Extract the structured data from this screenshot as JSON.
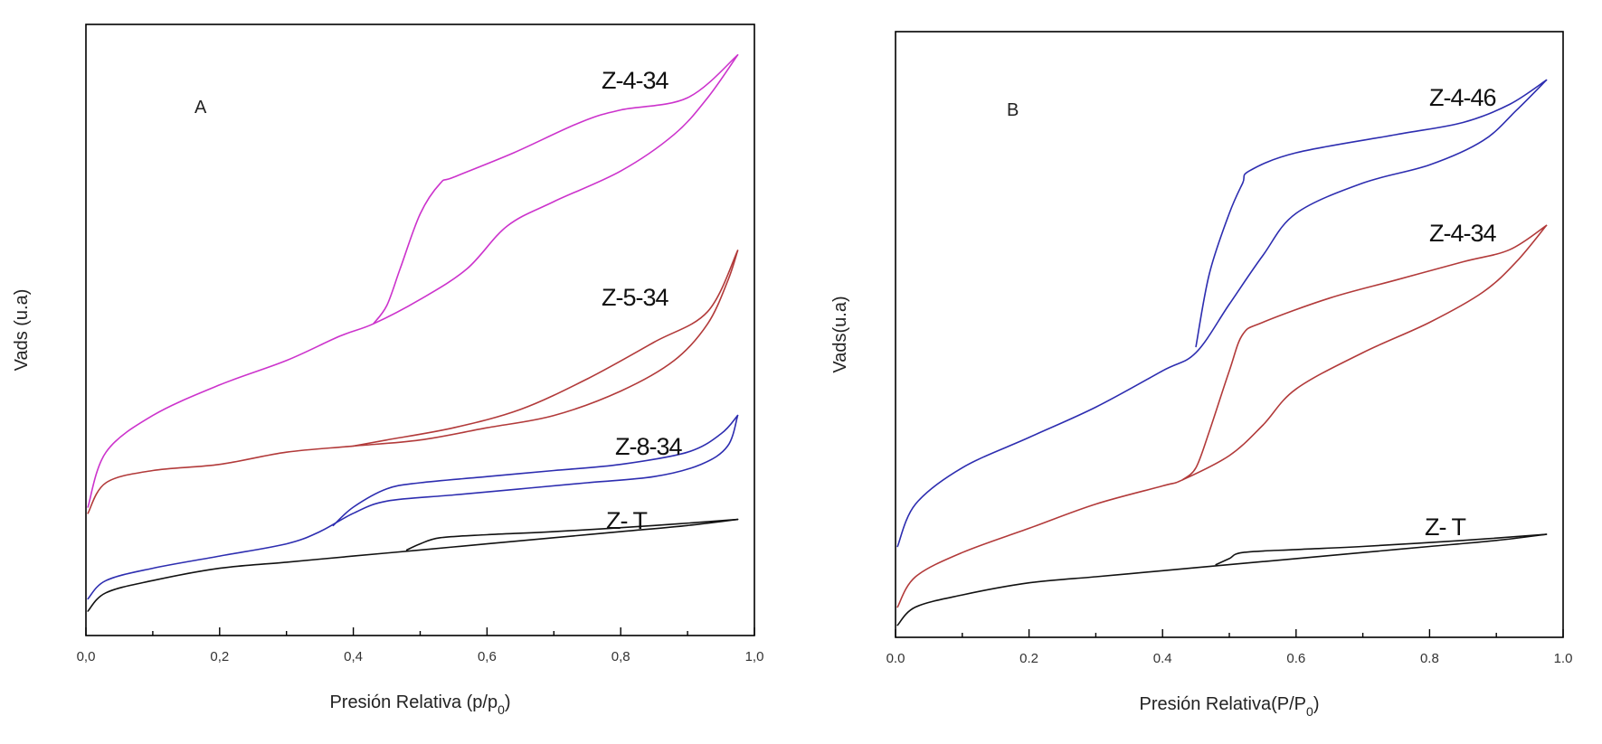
{
  "chart_data": [
    {
      "type": "line",
      "panel": "A",
      "xlabel": "Presión Relativa (p/p",
      "xlabel_sub": "0",
      "xlabel_close": ")",
      "ylabel": "Vads (u.a)",
      "xlim": [
        0.0,
        1.0
      ],
      "ylim": [
        0,
        100
      ],
      "y_ticks_labeled": false,
      "xticks": [
        0.0,
        0.2,
        0.4,
        0.6,
        0.8,
        1.0
      ],
      "xtick_labels": [
        "0,0",
        "0,2",
        "0,4",
        "0,6",
        "0,8",
        "1,0"
      ],
      "grid": false,
      "legend": "none",
      "series": [
        {
          "name": "Z-4-34",
          "color": "#cc33cc",
          "adsorption": [
            [
              0.003,
              21
            ],
            [
              0.03,
              30
            ],
            [
              0.1,
              36
            ],
            [
              0.2,
              41
            ],
            [
              0.3,
              45
            ],
            [
              0.38,
              49
            ],
            [
              0.43,
              51
            ],
            [
              0.5,
              55
            ],
            [
              0.57,
              60
            ],
            [
              0.63,
              67
            ],
            [
              0.7,
              71
            ],
            [
              0.8,
              76
            ],
            [
              0.88,
              82
            ],
            [
              0.93,
              88
            ],
            [
              0.975,
              95
            ]
          ],
          "desorption": [
            [
              0.975,
              95
            ],
            [
              0.9,
              88
            ],
            [
              0.8,
              86
            ],
            [
              0.74,
              84
            ],
            [
              0.64,
              79
            ],
            [
              0.55,
              75
            ],
            [
              0.53,
              74
            ],
            [
              0.5,
              69
            ],
            [
              0.47,
              60
            ],
            [
              0.45,
              54
            ],
            [
              0.43,
              51
            ]
          ]
        },
        {
          "name": "Z-5-34",
          "color": "#b23a3a",
          "adsorption": [
            [
              0.003,
              20
            ],
            [
              0.03,
              25
            ],
            [
              0.1,
              27
            ],
            [
              0.2,
              28
            ],
            [
              0.3,
              30
            ],
            [
              0.4,
              31
            ],
            [
              0.5,
              32
            ],
            [
              0.6,
              34
            ],
            [
              0.7,
              36
            ],
            [
              0.8,
              40
            ],
            [
              0.88,
              45
            ],
            [
              0.93,
              51
            ],
            [
              0.96,
              58
            ],
            [
              0.975,
              63
            ]
          ],
          "desorption": [
            [
              0.975,
              63
            ],
            [
              0.93,
              53
            ],
            [
              0.85,
              48
            ],
            [
              0.75,
              42
            ],
            [
              0.65,
              37
            ],
            [
              0.55,
              34
            ],
            [
              0.45,
              32
            ],
            [
              0.4,
              31
            ]
          ]
        },
        {
          "name": "Z-8-34",
          "color": "#2d2db0",
          "adsorption": [
            [
              0.003,
              6
            ],
            [
              0.03,
              9
            ],
            [
              0.1,
              11
            ],
            [
              0.2,
              13
            ],
            [
              0.3,
              15
            ],
            [
              0.35,
              17
            ],
            [
              0.4,
              20
            ],
            [
              0.45,
              22
            ],
            [
              0.55,
              23
            ],
            [
              0.65,
              24
            ],
            [
              0.75,
              25
            ],
            [
              0.85,
              26
            ],
            [
              0.92,
              28
            ],
            [
              0.96,
              31
            ],
            [
              0.975,
              36
            ]
          ],
          "desorption": [
            [
              0.975,
              36
            ],
            [
              0.95,
              33
            ],
            [
              0.9,
              30
            ],
            [
              0.8,
              28
            ],
            [
              0.7,
              27
            ],
            [
              0.6,
              26
            ],
            [
              0.5,
              25
            ],
            [
              0.45,
              24
            ],
            [
              0.4,
              21
            ],
            [
              0.37,
              18
            ]
          ]
        },
        {
          "name": "Z- T",
          "color": "#111111",
          "adsorption": [
            [
              0.003,
              4
            ],
            [
              0.03,
              7
            ],
            [
              0.1,
              9
            ],
            [
              0.2,
              11
            ],
            [
              0.3,
              12
            ],
            [
              0.4,
              13
            ],
            [
              0.5,
              14
            ],
            [
              0.6,
              15
            ],
            [
              0.7,
              16
            ],
            [
              0.8,
              17
            ],
            [
              0.9,
              18
            ],
            [
              0.975,
              19
            ]
          ],
          "desorption": [
            [
              0.975,
              19
            ],
            [
              0.85,
              18
            ],
            [
              0.7,
              17
            ],
            [
              0.6,
              16.5
            ],
            [
              0.53,
              16
            ],
            [
              0.5,
              15
            ],
            [
              0.48,
              14
            ]
          ]
        }
      ]
    },
    {
      "type": "line",
      "panel": "B",
      "xlabel": "Presión Relativa(P/P",
      "xlabel_sub": "0",
      "xlabel_close": ")",
      "ylabel": "Vads(u.a)",
      "xlim": [
        0.0,
        1.0
      ],
      "ylim": [
        0,
        100
      ],
      "y_ticks_labeled": false,
      "xticks": [
        0.0,
        0.2,
        0.4,
        0.6,
        0.8,
        1.0
      ],
      "xtick_labels": [
        "0.0",
        "0.2",
        "0.4",
        "0.6",
        "0.8",
        "1.0"
      ],
      "grid": false,
      "legend": "none",
      "series": [
        {
          "name": "Z-4-46",
          "color": "#2d2db0",
          "adsorption": [
            [
              0.003,
              15
            ],
            [
              0.03,
              22
            ],
            [
              0.1,
              28
            ],
            [
              0.2,
              33
            ],
            [
              0.3,
              38
            ],
            [
              0.4,
              44
            ],
            [
              0.45,
              47
            ],
            [
              0.5,
              55
            ],
            [
              0.55,
              63
            ],
            [
              0.6,
              70
            ],
            [
              0.7,
              75
            ],
            [
              0.8,
              78
            ],
            [
              0.88,
              82
            ],
            [
              0.93,
              87
            ],
            [
              0.975,
              92
            ]
          ],
          "desorption": [
            [
              0.975,
              92
            ],
            [
              0.92,
              88
            ],
            [
              0.85,
              85
            ],
            [
              0.75,
              83
            ],
            [
              0.6,
              80
            ],
            [
              0.53,
              77
            ],
            [
              0.52,
              75
            ],
            [
              0.5,
              70
            ],
            [
              0.47,
              60
            ],
            [
              0.45,
              48
            ]
          ]
        },
        {
          "name": "Z-4-34",
          "color": "#b23a3a",
          "adsorption": [
            [
              0.003,
              5
            ],
            [
              0.03,
              10
            ],
            [
              0.1,
              14
            ],
            [
              0.2,
              18
            ],
            [
              0.3,
              22
            ],
            [
              0.4,
              25
            ],
            [
              0.43,
              26
            ],
            [
              0.5,
              30
            ],
            [
              0.55,
              35
            ],
            [
              0.6,
              41
            ],
            [
              0.7,
              47
            ],
            [
              0.8,
              52
            ],
            [
              0.88,
              57
            ],
            [
              0.93,
              62
            ],
            [
              0.975,
              68
            ]
          ],
          "desorption": [
            [
              0.975,
              68
            ],
            [
              0.92,
              64
            ],
            [
              0.85,
              62
            ],
            [
              0.75,
              59
            ],
            [
              0.65,
              56
            ],
            [
              0.55,
              52
            ],
            [
              0.52,
              50
            ],
            [
              0.5,
              44
            ],
            [
              0.47,
              34
            ],
            [
              0.45,
              28
            ],
            [
              0.43,
              26
            ]
          ]
        },
        {
          "name": "Z- T",
          "color": "#111111",
          "adsorption": [
            [
              0.003,
              2
            ],
            [
              0.03,
              5
            ],
            [
              0.1,
              7
            ],
            [
              0.2,
              9
            ],
            [
              0.3,
              10
            ],
            [
              0.4,
              11
            ],
            [
              0.5,
              12
            ],
            [
              0.6,
              13
            ],
            [
              0.7,
              14
            ],
            [
              0.8,
              15
            ],
            [
              0.9,
              16
            ],
            [
              0.975,
              17
            ]
          ],
          "desorption": [
            [
              0.975,
              17
            ],
            [
              0.85,
              16
            ],
            [
              0.7,
              15
            ],
            [
              0.6,
              14.5
            ],
            [
              0.52,
              14
            ],
            [
              0.5,
              13
            ],
            [
              0.48,
              12
            ]
          ]
        }
      ]
    }
  ]
}
